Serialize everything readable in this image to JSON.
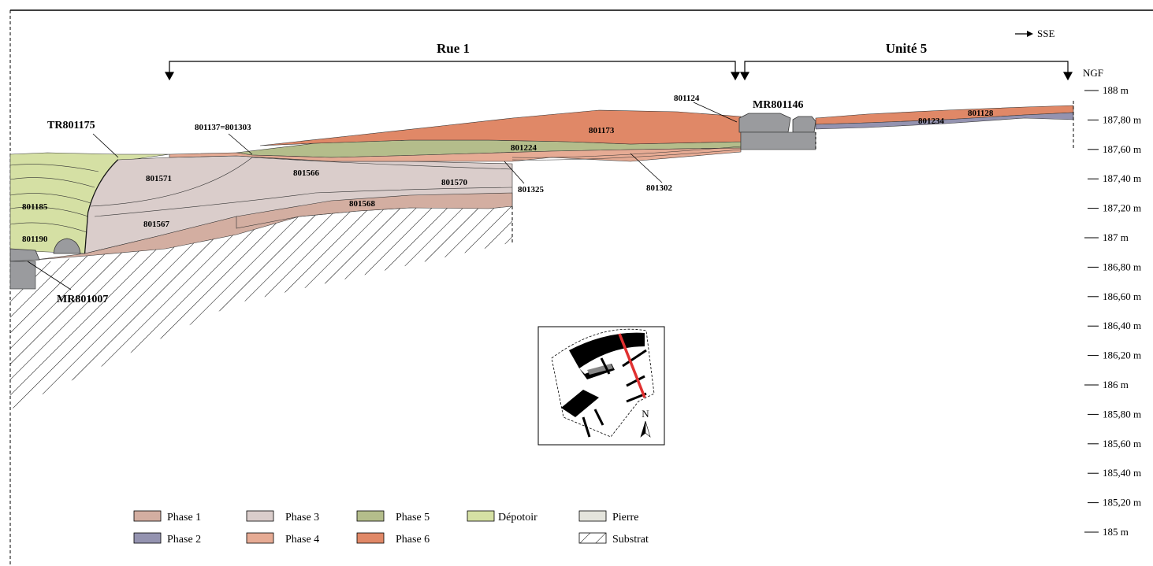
{
  "direction": {
    "label": "SSE"
  },
  "sections": [
    {
      "id": "rue",
      "label": "Rue 1"
    },
    {
      "id": "unite",
      "label": "Unité 5"
    }
  ],
  "scale": {
    "unit_label": "NGF",
    "ticks": [
      "188 m",
      "187,80 m",
      "187,60 m",
      "187,40 m",
      "187,20 m",
      "187 m",
      "186,80 m",
      "186,60 m",
      "186,40 m",
      "186,20 m",
      "186 m",
      "185,80 m",
      "185,60 m",
      "185,40 m",
      "185,20 m",
      "185 m"
    ]
  },
  "structures": {
    "tr801175": "TR801175",
    "mr801007": "MR801007",
    "mr801146": "MR801146"
  },
  "layers": {
    "l801185": "801185",
    "l801190": "801190",
    "l801571": "801571",
    "l801567": "801567",
    "l801566": "801566",
    "l801570": "801570",
    "l801568": "801568",
    "l801137": "801137=801303",
    "l801224": "801224",
    "l801173": "801173",
    "l801124": "801124",
    "l801325": "801325",
    "l801302": "801302",
    "l801234": "801234",
    "l801128": "801128"
  },
  "inset": {
    "north_label": "N"
  },
  "colors": {
    "phase1": "#d3aea1",
    "phase2": "#9493b0",
    "phase3": "#dacdcb",
    "phase4": "#e6ab94",
    "phase5": "#b4bd8b",
    "phase6": "#e08867",
    "depotoir": "#d5e0a4",
    "pierre": "#e4e4dc",
    "stone_grey": "#9a9b9e",
    "section_red": "#e03030"
  },
  "legend": [
    {
      "key": "phase1",
      "label": "Phase 1"
    },
    {
      "key": "phase3",
      "label": "Phase 3"
    },
    {
      "key": "phase5",
      "label": "Phase 5"
    },
    {
      "key": "depotoir",
      "label": "Dépotoir"
    },
    {
      "key": "pierre",
      "label": "Pierre"
    },
    {
      "key": "phase2",
      "label": "Phase 2"
    },
    {
      "key": "phase4",
      "label": "Phase 4"
    },
    {
      "key": "phase6",
      "label": "Phase 6"
    },
    {
      "key": "substrat",
      "label": "Substrat"
    }
  ]
}
